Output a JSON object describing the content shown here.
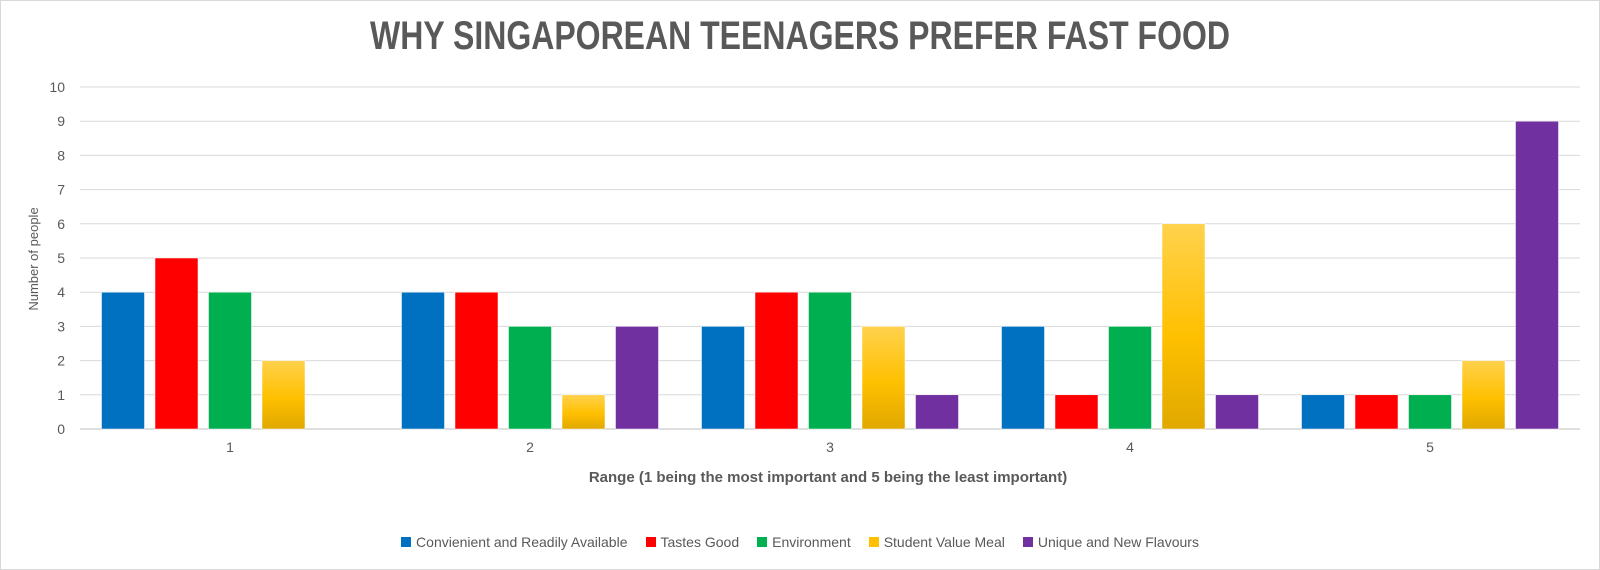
{
  "chart_data": {
    "type": "bar",
    "title": "WHY SINGAPOREAN TEENAGERS PREFER FAST FOOD",
    "xlabel": "Range (1 being the most important and 5 being the least important)",
    "ylabel": "Number of people",
    "categories": [
      "1",
      "2",
      "3",
      "4",
      "5"
    ],
    "ylim": [
      0,
      10
    ],
    "yticks": [
      "0",
      "1",
      "2",
      "3",
      "4",
      "5",
      "6",
      "7",
      "8",
      "9",
      "10"
    ],
    "grid": true,
    "legend_position": "bottom",
    "series": [
      {
        "name": "Convienient and Readily Available",
        "color": "#0070c0",
        "values": [
          4,
          4,
          3,
          3,
          1
        ]
      },
      {
        "name": "Tastes Good",
        "color": "#ff0000",
        "values": [
          5,
          4,
          4,
          1,
          1
        ]
      },
      {
        "name": "Environment",
        "color": "#00b050",
        "values": [
          4,
          3,
          4,
          3,
          1
        ]
      },
      {
        "name": "Student Value Meal",
        "color": "#ffc000",
        "values": [
          2,
          1,
          3,
          6,
          2
        ]
      },
      {
        "name": "Unique and New Flavours",
        "color": "#7030a0",
        "values": [
          0,
          3,
          1,
          1,
          9
        ]
      }
    ]
  }
}
